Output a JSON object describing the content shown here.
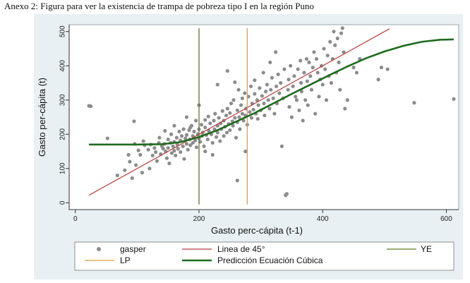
{
  "caption": "Anexo 2: Figura para ver la existencia de trampa de pobreza tipo I en la región Puno",
  "chart_data": {
    "type": "scatter",
    "title": "",
    "xlabel": "Gasto perc-cápita (t-1)",
    "ylabel": "Gasto per-cápita (t)",
    "xlim": [
      -10,
      620
    ],
    "ylim": [
      -20,
      520
    ],
    "xticks": [
      0,
      200,
      400,
      600
    ],
    "yticks": [
      0,
      100,
      200,
      300,
      400,
      500
    ],
    "grid": false,
    "legend_position": "bottom",
    "background": "#eaf2f3",
    "legend": [
      {
        "label": "gasper",
        "kind": "point",
        "color": "#8c8c8c"
      },
      {
        "label": "Linea de 45°",
        "kind": "line",
        "color": "#b83a3a"
      },
      {
        "label": "YE",
        "kind": "line",
        "color": "#5a7a1e"
      },
      {
        "label": "LP",
        "kind": "line",
        "color": "#e0a030"
      },
      {
        "label": "Predicción Ecuación Cúbica",
        "kind": "line",
        "color": "#1e6b1e"
      }
    ],
    "series": [
      {
        "name": "gasper",
        "kind": "scatter",
        "color": "#8c8c8c",
        "points": [
          [
            22,
            283
          ],
          [
            25,
            282
          ],
          [
            52,
            188
          ],
          [
            68,
            80
          ],
          [
            80,
            95
          ],
          [
            88,
            120
          ],
          [
            92,
            72
          ],
          [
            95,
            238
          ],
          [
            98,
            110
          ],
          [
            102,
            153
          ],
          [
            105,
            140
          ],
          [
            108,
            88
          ],
          [
            110,
            180
          ],
          [
            112,
            168
          ],
          [
            118,
            155
          ],
          [
            120,
            100
          ],
          [
            122,
            170
          ],
          [
            125,
            138
          ],
          [
            128,
            160
          ],
          [
            130,
            148
          ],
          [
            132,
            122
          ],
          [
            135,
            175
          ],
          [
            136,
            190
          ],
          [
            138,
            142
          ],
          [
            140,
            165
          ],
          [
            142,
            158
          ],
          [
            144,
            172
          ],
          [
            146,
            150
          ],
          [
            148,
            130
          ],
          [
            150,
            185
          ],
          [
            150,
            160
          ],
          [
            152,
            115
          ],
          [
            154,
            175
          ],
          [
            155,
            200
          ],
          [
            156,
            145
          ],
          [
            158,
            165
          ],
          [
            160,
            178
          ],
          [
            160,
            152
          ],
          [
            162,
            138
          ],
          [
            164,
            190
          ],
          [
            165,
            170
          ],
          [
            166,
            158
          ],
          [
            168,
            208
          ],
          [
            170,
            182
          ],
          [
            170,
            148
          ],
          [
            172,
            195
          ],
          [
            174,
            165
          ],
          [
            175,
            215
          ],
          [
            176,
            128
          ],
          [
            178,
            188
          ],
          [
            180,
            172
          ],
          [
            180,
            198
          ],
          [
            182,
            155
          ],
          [
            184,
            212
          ],
          [
            185,
            185
          ],
          [
            186,
            168
          ],
          [
            188,
            225
          ],
          [
            190,
            195
          ],
          [
            190,
            175
          ],
          [
            192,
            208
          ],
          [
            194,
            182
          ],
          [
            195,
            240
          ],
          [
            196,
            162
          ],
          [
            198,
            200
          ],
          [
            200,
            188
          ],
          [
            200,
            215
          ],
          [
            202,
            178
          ],
          [
            204,
            228
          ],
          [
            205,
            195
          ],
          [
            206,
            205
          ],
          [
            208,
            165
          ],
          [
            210,
            220
          ],
          [
            210,
            242
          ],
          [
            212,
            198
          ],
          [
            214,
            185
          ],
          [
            215,
            252
          ],
          [
            216,
            210
          ],
          [
            218,
            232
          ],
          [
            220,
            200
          ],
          [
            222,
            175
          ],
          [
            224,
            240
          ],
          [
            225,
            215
          ],
          [
            226,
            260
          ],
          [
            228,
            192
          ],
          [
            230,
            225
          ],
          [
            230,
            205
          ],
          [
            232,
            248
          ],
          [
            234,
            180
          ],
          [
            235,
            232
          ],
          [
            236,
            215
          ],
          [
            238,
            268
          ],
          [
            240,
            195
          ],
          [
            240,
            240
          ],
          [
            242,
            222
          ],
          [
            244,
            255
          ],
          [
            245,
            205
          ],
          [
            246,
            275
          ],
          [
            248,
            230
          ],
          [
            250,
            212
          ],
          [
            250,
            262
          ],
          [
            252,
            290
          ],
          [
            254,
            238
          ],
          [
            255,
            225
          ],
          [
            256,
            300
          ],
          [
            258,
            248
          ],
          [
            260,
            190
          ],
          [
            262,
            270
          ],
          [
            262,
            235
          ],
          [
            264,
            330
          ],
          [
            265,
            250
          ],
          [
            266,
            215
          ],
          [
            268,
            285
          ],
          [
            270,
            260
          ],
          [
            270,
            305
          ],
          [
            272,
            240
          ],
          [
            274,
            320
          ],
          [
            275,
            255
          ],
          [
            276,
            275
          ],
          [
            278,
            228
          ],
          [
            280,
            310
          ],
          [
            282,
            265
          ],
          [
            284,
            340
          ],
          [
            285,
            248
          ],
          [
            286,
            290
          ],
          [
            288,
            272
          ],
          [
            290,
            358
          ],
          [
            290,
            318
          ],
          [
            292,
            260
          ],
          [
            294,
            300
          ],
          [
            295,
            245
          ],
          [
            296,
            285
          ],
          [
            298,
            335
          ],
          [
            300,
            270
          ],
          [
            302,
            312
          ],
          [
            304,
            380
          ],
          [
            305,
            290
          ],
          [
            306,
            255
          ],
          [
            308,
            325
          ],
          [
            310,
            345
          ],
          [
            312,
            300
          ],
          [
            314,
            275
          ],
          [
            315,
            410
          ],
          [
            316,
            330
          ],
          [
            318,
            365
          ],
          [
            320,
            305
          ],
          [
            322,
            260
          ],
          [
            324,
            440
          ],
          [
            325,
            340
          ],
          [
            326,
            290
          ],
          [
            328,
            375
          ],
          [
            330,
            320
          ],
          [
            332,
            350
          ],
          [
            334,
            165
          ],
          [
            336,
            305
          ],
          [
            338,
            390
          ],
          [
            340,
            22
          ],
          [
            342,
            26
          ],
          [
            344,
            330
          ],
          [
            345,
            360
          ],
          [
            346,
            280
          ],
          [
            348,
            400
          ],
          [
            350,
            250
          ],
          [
            352,
            340
          ],
          [
            354,
            370
          ],
          [
            356,
            310
          ],
          [
            358,
            300
          ],
          [
            360,
            390
          ],
          [
            362,
            270
          ],
          [
            364,
            415
          ],
          [
            365,
            350
          ],
          [
            366,
            325
          ],
          [
            368,
            240
          ],
          [
            370,
            380
          ],
          [
            372,
            300
          ],
          [
            374,
            420
          ],
          [
            375,
            355
          ],
          [
            376,
            285
          ],
          [
            378,
            410
          ],
          [
            380,
            370
          ],
          [
            382,
            330
          ],
          [
            384,
            395
          ],
          [
            386,
            440
          ],
          [
            388,
            260
          ],
          [
            390,
            420
          ],
          [
            392,
            380
          ],
          [
            394,
            310
          ],
          [
            396,
            360
          ],
          [
            398,
            400
          ],
          [
            400,
            345
          ],
          [
            402,
            450
          ],
          [
            404,
            390
          ],
          [
            406,
            300
          ],
          [
            408,
            430
          ],
          [
            410,
            370
          ],
          [
            412,
            470
          ],
          [
            414,
            350
          ],
          [
            416,
            420
          ],
          [
            418,
            500
          ],
          [
            420,
            460
          ],
          [
            422,
            380
          ],
          [
            424,
            480
          ],
          [
            426,
            410
          ],
          [
            428,
            330
          ],
          [
            430,
            495
          ],
          [
            432,
            510
          ],
          [
            434,
            440
          ],
          [
            436,
            275
          ],
          [
            440,
            300
          ],
          [
            450,
            395
          ],
          [
            455,
            380
          ],
          [
            460,
            420
          ],
          [
            490,
            360
          ],
          [
            495,
            395
          ],
          [
            505,
            390
          ],
          [
            548,
            292
          ],
          [
            612,
            303
          ],
          [
            262,
            65
          ],
          [
            230,
            345
          ],
          [
            246,
            385
          ],
          [
            200,
            285
          ],
          [
            210,
            150
          ],
          [
            222,
            140
          ],
          [
            186,
            220
          ],
          [
            160,
            225
          ],
          [
            145,
            210
          ],
          [
            96,
            172
          ],
          [
            86,
            140
          ],
          [
            180,
            250
          ],
          [
            258,
            352
          ],
          [
            275,
            150
          ]
        ]
      },
      {
        "name": "Linea de 45°",
        "kind": "line",
        "color": "#b83a3a",
        "x": [
          22,
          508
        ],
        "y": [
          22,
          508
        ]
      },
      {
        "name": "YE",
        "kind": "vline",
        "color": "#5a7a1e",
        "x": 200,
        "y": [
          -5,
          510
        ]
      },
      {
        "name": "LP",
        "kind": "vline",
        "color": "#e0a030",
        "x": 278,
        "y": [
          -5,
          510
        ]
      },
      {
        "name": "Predicción Ecuación Cúbica",
        "kind": "line",
        "color": "#1e6b1e",
        "x": [
          22,
          60,
          100,
          140,
          170,
          200,
          230,
          260,
          290,
          320,
          350,
          380,
          410,
          440,
          470,
          500,
          530,
          560,
          590,
          612
        ],
        "y": [
          170,
          170,
          170,
          171,
          177,
          192,
          212,
          237,
          262,
          290,
          318,
          345,
          372,
          398,
          422,
          442,
          458,
          470,
          476,
          477
        ]
      }
    ]
  }
}
